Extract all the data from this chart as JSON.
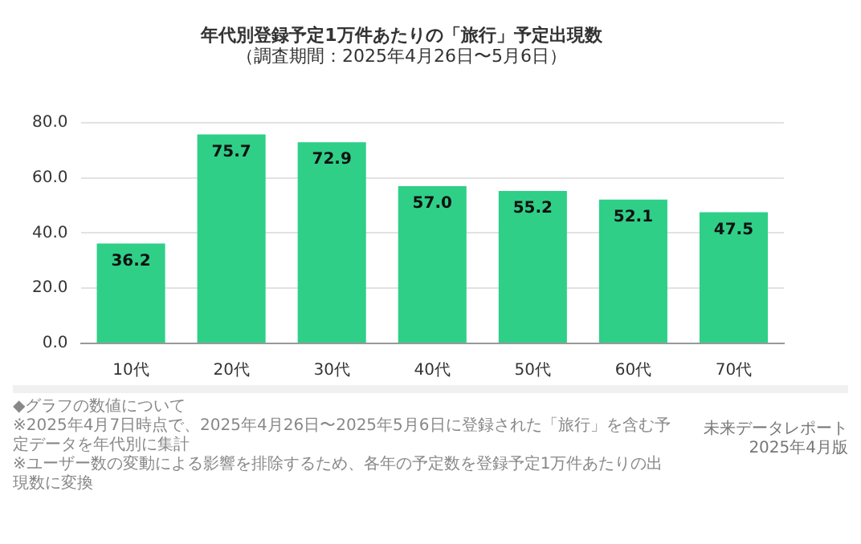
{
  "chart_data": {
    "type": "bar",
    "title": "年代別登録予定1万件あたりの「旅行」予定出現数",
    "subtitle": "（調査期間：2025年4月26日〜5月6日）",
    "categories": [
      "10代",
      "20代",
      "30代",
      "40代",
      "50代",
      "60代",
      "70代"
    ],
    "values": [
      36.2,
      75.7,
      72.9,
      57.0,
      55.2,
      52.1,
      47.5
    ],
    "value_labels": [
      "36.2",
      "75.7",
      "72.9",
      "57.0",
      "55.2",
      "52.1",
      "47.5"
    ],
    "color": "#2fcf88",
    "ylim": [
      0,
      80
    ],
    "yticks": [
      {
        "value": 0,
        "label": "0.0"
      },
      {
        "value": 20,
        "label": "20.0"
      },
      {
        "value": 40,
        "label": "40.0"
      },
      {
        "value": 60,
        "label": "60.0"
      },
      {
        "value": 80,
        "label": "80.0"
      }
    ],
    "grid": "y",
    "legend": false,
    "annotations": [
      "◆グラフの数値について",
      "※2025年4月7日時点で、2025年4月26日〜2025年5月6日に登録された「旅行」を含む予定データを年代別に集計",
      "※ユーザー数の変動による影響を排除するため、各年の予定数を登録予定1万件あたりの出現数に変換",
      "未来データレポート",
      "2025年4月版"
    ]
  }
}
